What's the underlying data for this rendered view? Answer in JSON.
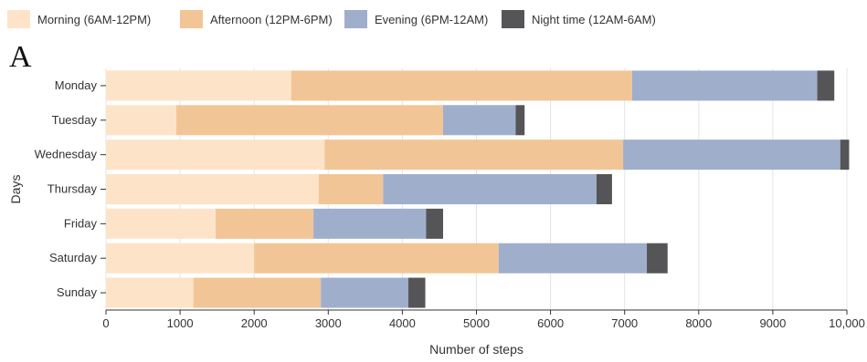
{
  "panel_label": "A",
  "legend": [
    {
      "label": "Morning (6AM-12PM)",
      "color": "#fde3c8"
    },
    {
      "label": "Afternoon (12PM-6PM)",
      "color": "#f2c596"
    },
    {
      "label": "Evening (6PM-12AM)",
      "color": "#9fafcb"
    },
    {
      "label": "Night time (12AM-6AM)",
      "color": "#555558"
    }
  ],
  "chart_data": {
    "type": "bar",
    "orientation": "horizontal",
    "stacked": true,
    "xlabel": "Number of steps",
    "ylabel": "Days",
    "xlim": [
      0,
      10000
    ],
    "x_ticks": [
      0,
      1000,
      2000,
      3000,
      4000,
      5000,
      6000,
      7000,
      8000,
      9000,
      10000
    ],
    "x_tick_labels": [
      "0",
      "1000",
      "2000",
      "3000",
      "4000",
      "5000",
      "6000",
      "7000",
      "8000",
      "9000",
      "10,000"
    ],
    "grid": "vertical",
    "legend_position": "top",
    "categories": [
      "Monday",
      "Tuesday",
      "Wednesday",
      "Thursday",
      "Friday",
      "Saturday",
      "Sunday"
    ],
    "series": [
      {
        "name": "Morning (6AM-12PM)",
        "color": "#fde3c8",
        "values": [
          2500,
          950,
          2950,
          2870,
          1480,
          2000,
          1180
        ]
      },
      {
        "name": "Afternoon (12PM-6PM)",
        "color": "#f2c596",
        "values": [
          4600,
          3600,
          4030,
          870,
          1320,
          3300,
          1720
        ]
      },
      {
        "name": "Evening (6PM-12AM)",
        "color": "#9fafcb",
        "values": [
          2500,
          980,
          2930,
          2880,
          1520,
          2000,
          1180
        ]
      },
      {
        "name": "Night time (12AM-6AM)",
        "color": "#555558",
        "values": [
          230,
          120,
          120,
          210,
          230,
          280,
          230
        ]
      }
    ]
  }
}
